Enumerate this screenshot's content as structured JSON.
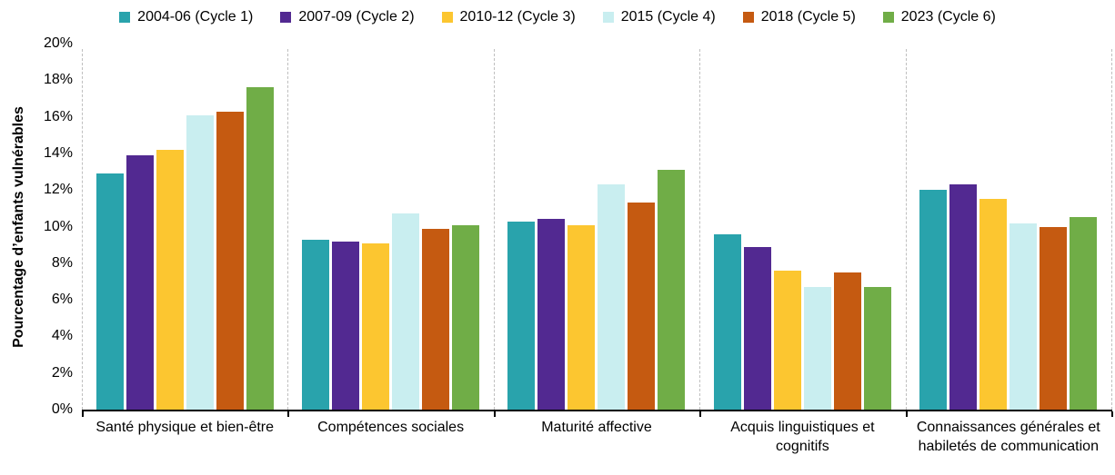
{
  "chart_data": {
    "type": "bar",
    "title": "",
    "xlabel": "",
    "ylabel": "Pourcentage d’enfants vulnérables",
    "ylim": [
      0,
      20
    ],
    "ytick_step": 2,
    "ytick_labels": [
      "0%",
      "2%",
      "4%",
      "6%",
      "8%",
      "10%",
      "12%",
      "14%",
      "16%",
      "18%",
      "20%"
    ],
    "grid": "no horizontal gridlines; light-gray dashed vertical separators at category boundaries",
    "legend_position": "top",
    "categories": [
      "Santé physique et bien-être",
      "Compétences sociales",
      "Maturité affective",
      "Acquis linguistiques et cognitifs",
      "Connaissances générales et habiletés de communication"
    ],
    "series": [
      {
        "name": "2004-06 (Cycle 1)",
        "color": "#29A3AC",
        "values": [
          12.9,
          9.3,
          10.3,
          9.6,
          12.0
        ]
      },
      {
        "name": "2007-09 (Cycle 2)",
        "color": "#522991",
        "values": [
          13.9,
          9.2,
          10.4,
          8.9,
          12.3
        ]
      },
      {
        "name": "2010-12 (Cycle 3)",
        "color": "#FCC630",
        "values": [
          14.2,
          9.1,
          10.1,
          7.6,
          11.5
        ]
      },
      {
        "name": "2015 (Cycle 4)",
        "color": "#C9EEF0",
        "values": [
          16.1,
          10.7,
          12.3,
          6.7,
          10.2
        ]
      },
      {
        "name": "2018 (Cycle 5)",
        "color": "#C55A11",
        "values": [
          16.3,
          9.9,
          11.3,
          7.5,
          10.0
        ]
      },
      {
        "name": "2023 (Cycle 6)",
        "color": "#70AD47",
        "values": [
          17.6,
          10.1,
          13.1,
          6.7,
          10.5
        ]
      }
    ],
    "axis_colors": {
      "axis_line": "#000000",
      "separator": "#BFBFBF"
    }
  }
}
